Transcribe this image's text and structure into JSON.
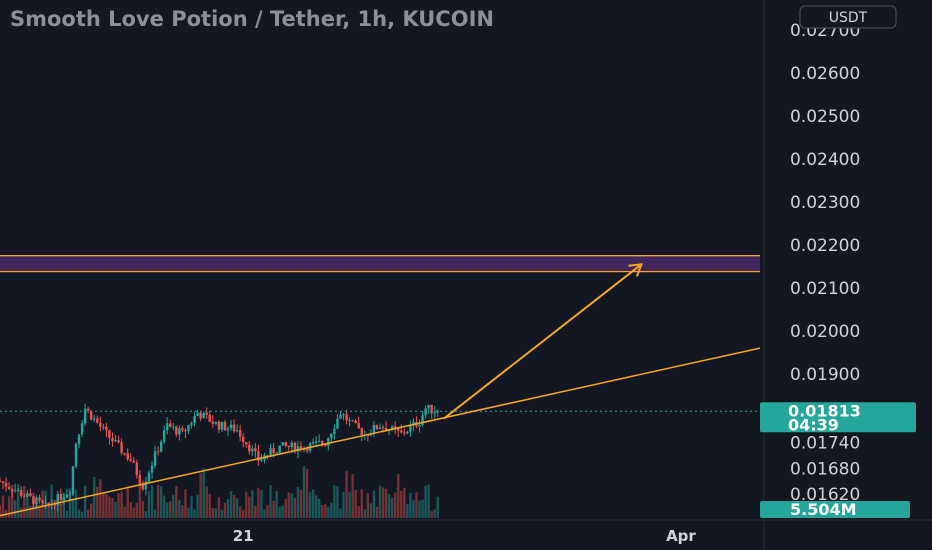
{
  "title": "Smooth Love Potion / Tether, 1h, KUCOIN",
  "currency_badge": "USDT",
  "current_price": {
    "value": "0.01813",
    "countdown": "04:39",
    "color": "#26a69a"
  },
  "volume_badge": {
    "value": "5.504M",
    "color": "#26a69a"
  },
  "colors": {
    "background": "#131722",
    "up": "#26a69a",
    "down": "#ef5350",
    "drawing": "#f5a623",
    "zone_fill": "#4b2a66"
  },
  "chart_data": {
    "type": "candlestick",
    "title": "Smooth Love Potion / Tether, 1h, KUCOIN",
    "ylim": [
      0.0156,
      0.0277
    ],
    "y_ticks": [
      "0.02700",
      "0.02600",
      "0.02500",
      "0.02400",
      "0.02300",
      "0.02200",
      "0.02100",
      "0.02000",
      "0.01900",
      "0.01740",
      "0.01680",
      "0.01620"
    ],
    "x_ticks": [
      "21",
      "Apr"
    ],
    "x_range_hours": [
      -80,
      170
    ],
    "x_tick_hours": [
      0,
      144
    ],
    "last_close": 0.01813,
    "price_path_hours": [
      -80,
      -65,
      -57,
      -55,
      -52,
      -45,
      -37,
      -33,
      -25,
      -20,
      -15,
      -8,
      -2,
      5,
      12,
      20,
      27,
      32,
      36,
      40,
      45,
      52,
      58,
      60,
      64
    ],
    "price_path_values": [
      0.0165,
      0.0159,
      0.0163,
      0.0174,
      0.0182,
      0.0176,
      0.017,
      0.0164,
      0.0178,
      0.0176,
      0.0181,
      0.0178,
      0.0177,
      0.017,
      0.0173,
      0.0173,
      0.0174,
      0.0181,
      0.0178,
      0.0176,
      0.0178,
      0.0176,
      0.0179,
      0.0182,
      0.01813
    ],
    "resistance_zone": [
      0.02138,
      0.02175
    ],
    "trendline": {
      "from_hour": -80,
      "from_price": 0.0157,
      "to_hour": 170,
      "to_price": 0.0196
    },
    "projection_arrow": {
      "from_hour": 66,
      "from_price": 0.01796,
      "to_hour": 131,
      "to_price": 0.02155
    },
    "grid": false
  }
}
